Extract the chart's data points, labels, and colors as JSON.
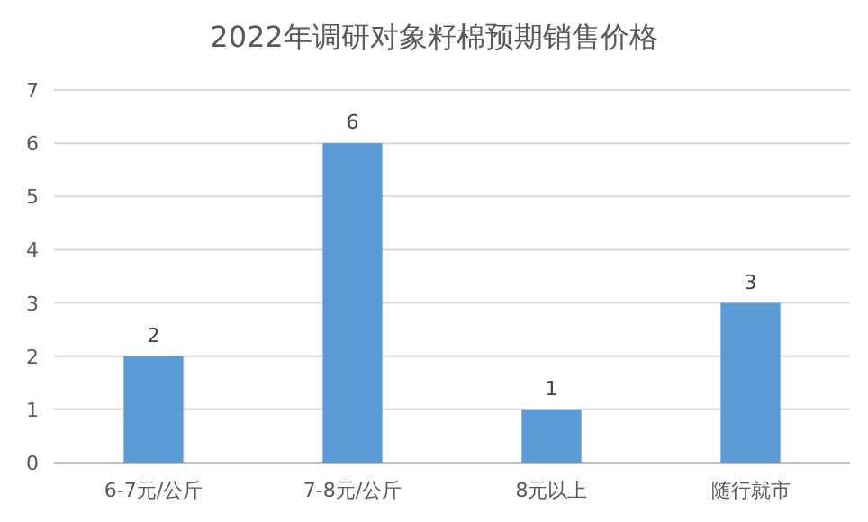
{
  "chart_data": {
    "type": "bar",
    "title": "2022年调研对象籽棉预期销售价格",
    "categories": [
      "6-7元/公斤",
      "7-8元/公斤",
      "8元以上",
      "随行就市"
    ],
    "values": [
      2,
      6,
      1,
      3
    ],
    "color": "#5b9bd5",
    "ylim": [
      0,
      7
    ],
    "yticks": [
      0,
      1,
      2,
      3,
      4,
      5,
      6,
      7
    ],
    "grid": "y",
    "data_labels": true
  }
}
